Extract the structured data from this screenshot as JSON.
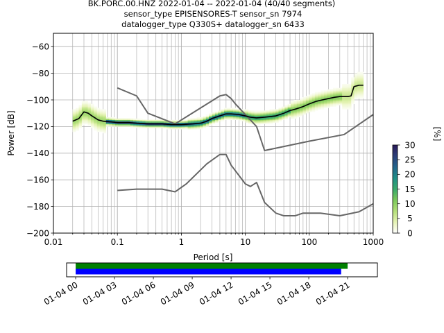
{
  "chart_data": [
    {
      "type": "heatmap",
      "title": [
        "BK.PORC.00.HNZ   2022-01-04 -- 2022-01-04  (40/40 segments)",
        "sensor_type EPISENSORES-T sensor_sn 7974",
        "datalogger_type Q330S+ datalogger_sn 6433"
      ],
      "xlabel": "Period [s]",
      "ylabel": "Power [dB]",
      "xscale": "log",
      "xlim": [
        0.01,
        1000
      ],
      "ylim": [
        -200,
        -50
      ],
      "x_ticks": [
        0.01,
        0.1,
        1,
        10,
        100,
        1000
      ],
      "x_tick_labels": [
        "0.01",
        "0.1",
        "1",
        "10",
        "100",
        "1000"
      ],
      "y_ticks": [
        -200,
        -180,
        -160,
        -140,
        -120,
        -100,
        -80,
        -60
      ],
      "y_tick_labels": [
        "−200",
        "−180",
        "−160",
        "−140",
        "−120",
        "−100",
        "−80",
        "−60"
      ],
      "grid": true,
      "colorbar": {
        "label": "[%]",
        "range": [
          0,
          30
        ],
        "ticks": [
          0,
          5,
          10,
          15,
          20,
          25,
          30
        ],
        "tick_labels": [
          "0",
          "5",
          "10",
          "15",
          "20",
          "25",
          "30"
        ],
        "colormap": [
          "#ffffff",
          "#e6f3b4",
          "#b5e07a",
          "#7cc95a",
          "#39a96b",
          "#1f8f87",
          "#23648c",
          "#2c3f7a",
          "#2a1a58"
        ]
      },
      "series": [
        {
          "name": "mode",
          "color": "#000000",
          "x": [
            0.02,
            0.025,
            0.03,
            0.035,
            0.04,
            0.05,
            0.06,
            0.08,
            0.1,
            0.15,
            0.2,
            0.3,
            0.5,
            0.7,
            1,
            1.5,
            2,
            2.5,
            3,
            4,
            5,
            6,
            8,
            10,
            12,
            15,
            20,
            30,
            40,
            50,
            60,
            70,
            80,
            100,
            130,
            160,
            200,
            250,
            300,
            400,
            450,
            500,
            600,
            700
          ],
          "y": [
            -116,
            -114,
            -109,
            -110,
            -112,
            -115,
            -116,
            -116.5,
            -117,
            -117,
            -117.5,
            -118,
            -118,
            -118.5,
            -118.5,
            -118,
            -117.5,
            -116,
            -114,
            -112,
            -110.5,
            -110.5,
            -111,
            -112,
            -113,
            -113.5,
            -113,
            -112,
            -110,
            -108,
            -107,
            -106,
            -105,
            -103,
            -101,
            -100,
            -99,
            -98,
            -97.5,
            -97.5,
            -97,
            -90,
            -89,
            -89
          ]
        }
      ],
      "reference_curves": [
        {
          "color": "#666666",
          "x": [
            0.1,
            0.2,
            0.3,
            0.8,
            4,
            5,
            6,
            7,
            15,
            20,
            100,
            350,
            1000
          ],
          "y": [
            -91,
            -97,
            -110,
            -118,
            -97,
            -96,
            -99,
            -103,
            -120,
            -138,
            -131,
            -126,
            -111
          ]
        },
        {
          "color": "#666666",
          "x": [
            0.1,
            0.2,
            0.5,
            0.8,
            1.2,
            2.5,
            4,
            5,
            6,
            10,
            12,
            15,
            20,
            30,
            40,
            60,
            80,
            100,
            150,
            300,
            600,
            1000
          ],
          "y": [
            -168,
            -167,
            -167,
            -169,
            -163,
            -148,
            -141,
            -141,
            -149,
            -163,
            -165,
            -162,
            -177,
            -185,
            -187,
            -187,
            -185,
            -185,
            -185,
            -187,
            -184,
            -178
          ]
        }
      ]
    },
    {
      "type": "bar",
      "x_tick_labels": [
        "01-04 00",
        "01-04 03",
        "01-04 06",
        "01-04 09",
        "01-04 12",
        "01-04 15",
        "01-04 18",
        "01-04 21"
      ],
      "x_ticks_hours": [
        0,
        3,
        6,
        9,
        12,
        15,
        18,
        21
      ],
      "xlim_hours": [
        -0.7,
        23.3
      ],
      "series": [
        {
          "color": "#008000",
          "start_hour": 0,
          "end_hour": 21.0
        },
        {
          "color": "#0000ff",
          "start_hour": 0,
          "end_hour": 20.5
        }
      ]
    }
  ]
}
